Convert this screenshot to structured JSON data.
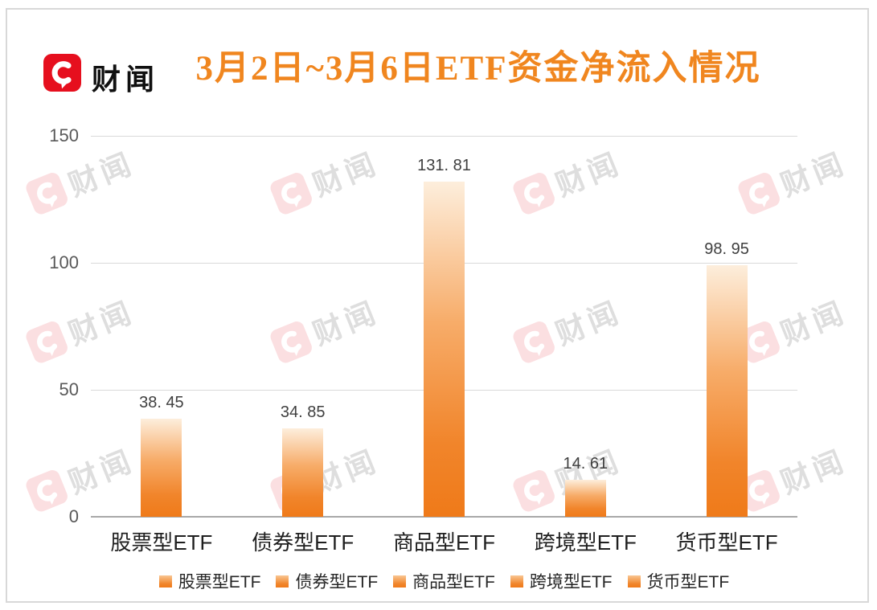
{
  "header": {
    "logo_text": "财闻"
  },
  "watermark": {
    "text": "财闻"
  },
  "chart_data": {
    "type": "bar",
    "title": "3月2日~3月6日ETF资金净流入情况",
    "categories": [
      "股票型ETF",
      "债券型ETF",
      "商品型ETF",
      "跨境型ETF",
      "货币型ETF"
    ],
    "values": [
      38.45,
      34.85,
      131.81,
      14.61,
      98.95
    ],
    "value_labels": [
      "38. 45",
      "34. 85",
      "131. 81",
      "14. 61",
      "98. 95"
    ],
    "xlabel": "",
    "ylabel": "",
    "ylim": [
      0,
      150
    ],
    "yticks": [
      0,
      50,
      100,
      150
    ],
    "grid": true,
    "legend": {
      "position": "bottom",
      "entries": [
        "股票型ETF",
        "债券型ETF",
        "商品型ETF",
        "跨境型ETF",
        "货币型ETF"
      ]
    },
    "colors": {
      "bar_gradient_top": "#FDEEDC",
      "bar_gradient_bottom": "#EF7A19",
      "title_text": "#F0861F",
      "axis_text": "#595959",
      "value_text": "#3F3F3F",
      "category_text": "#1F1F1F",
      "gridline": "#D9D9D9",
      "axis_line": "#A8A8A8"
    }
  },
  "brand_colors": {
    "logo_red": "#E60F1E",
    "logo_text": "#101010",
    "border": "#D8D8D8"
  }
}
